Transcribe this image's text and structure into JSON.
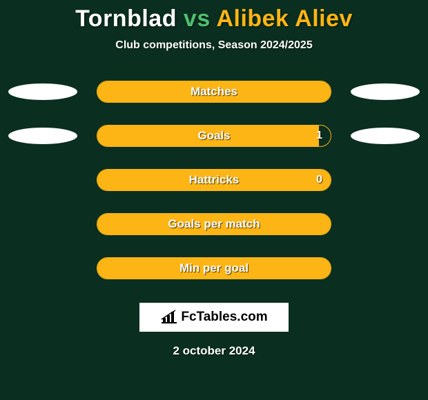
{
  "title": {
    "player1": "Tornblad",
    "vs": "vs",
    "player2": "Alibek Aliev",
    "player1_color": "#ffffff",
    "vs_color": "#4fbf6e",
    "player2_color": "#fcb514"
  },
  "subtitle": "Club competitions, Season 2024/2025",
  "background_color": "#0a2e1f",
  "bar_border_color": "#fcb514",
  "bar_fill_color": "#fcb514",
  "ellipse_color": "#ffffff",
  "rows": [
    {
      "label": "Matches",
      "fill_pct": 100,
      "show_left_ellipse": true,
      "show_right_ellipse": true,
      "value_display": ""
    },
    {
      "label": "Goals",
      "fill_pct": 95,
      "show_left_ellipse": true,
      "show_right_ellipse": true,
      "value_display": "1"
    },
    {
      "label": "Hattricks",
      "fill_pct": 100,
      "show_left_ellipse": false,
      "show_right_ellipse": false,
      "value_display": "0"
    },
    {
      "label": "Goals per match",
      "fill_pct": 100,
      "show_left_ellipse": false,
      "show_right_ellipse": false,
      "value_display": ""
    },
    {
      "label": "Min per goal",
      "fill_pct": 100,
      "show_left_ellipse": false,
      "show_right_ellipse": false,
      "value_display": ""
    }
  ],
  "logo_text": "FcTables.com",
  "date": "2 october 2024"
}
